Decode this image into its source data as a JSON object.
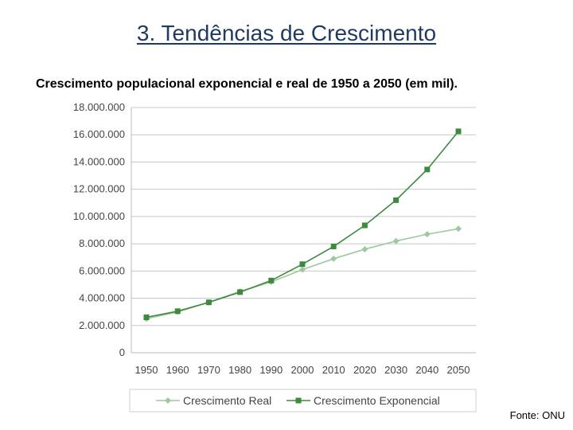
{
  "slide": {
    "title": "3. Tendências de Crescimento",
    "subtitle": "Crescimento populacional exponencial e real de 1950 a 2050 (em mil).",
    "source": "Fonte: ONU"
  },
  "chart_data": {
    "type": "line",
    "title": "",
    "xlabel": "",
    "ylabel": "",
    "x": [
      "1950",
      "1960",
      "1970",
      "1980",
      "1990",
      "2000",
      "2010",
      "2020",
      "2030",
      "2040",
      "2050"
    ],
    "ylim": [
      0,
      18000000
    ],
    "yticks": [
      {
        "value": 0,
        "label": "0"
      },
      {
        "value": 2000000,
        "label": "2.000.000"
      },
      {
        "value": 4000000,
        "label": "4.000.000"
      },
      {
        "value": 6000000,
        "label": "6.000.000"
      },
      {
        "value": 8000000,
        "label": "8.000.000"
      },
      {
        "value": 10000000,
        "label": "10.000.000"
      },
      {
        "value": 12000000,
        "label": "12.000.000"
      },
      {
        "value": 14000000,
        "label": "14.000.000"
      },
      {
        "value": 16000000,
        "label": "16.000.000"
      },
      {
        "value": 18000000,
        "label": "18.000.000"
      }
    ],
    "grid": true,
    "legend_position": "bottom",
    "series": [
      {
        "name": "Crescimento Real",
        "color": "#9ec99e",
        "marker": "diamond",
        "values": [
          2500000,
          3000000,
          3700000,
          4500000,
          5200000,
          6100000,
          6900000,
          7600000,
          8200000,
          8700000,
          9100000
        ]
      },
      {
        "name": "Crescimento Exponencial",
        "color": "#3d8a3d",
        "marker": "square",
        "values": [
          2600000,
          3050000,
          3700000,
          4450000,
          5300000,
          6500000,
          7800000,
          9350000,
          11200000,
          13450000,
          16250000
        ]
      }
    ]
  }
}
